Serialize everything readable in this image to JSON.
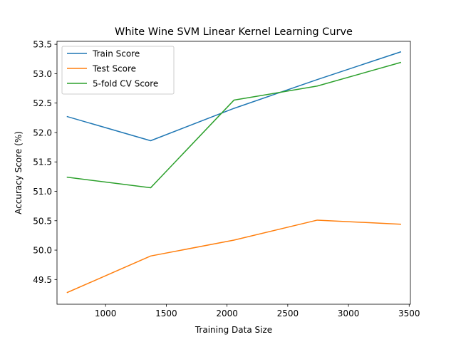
{
  "chart_data": {
    "type": "line",
    "title": "White Wine SVM Linear Kernel Learning Curve",
    "xlabel": "Training Data Size",
    "ylabel": "Accuracy Score (%)",
    "xlim": [
      600,
      3510
    ],
    "ylim": [
      49.08,
      53.55
    ],
    "x_ticks": [
      1000,
      1500,
      2000,
      2500,
      3000,
      3500
    ],
    "y_ticks": [
      49.5,
      50.0,
      50.5,
      51.0,
      51.5,
      52.0,
      52.5,
      53.0,
      53.5
    ],
    "x_tick_labels": [
      "1000",
      "1500",
      "2000",
      "2500",
      "3000",
      "3500"
    ],
    "y_tick_labels": [
      "49.5",
      "50.0",
      "50.5",
      "51.0",
      "51.5",
      "52.0",
      "52.5",
      "53.0",
      "53.5"
    ],
    "x": [
      685,
      1371,
      2057,
      2743,
      3429
    ],
    "grid": false,
    "legend_position": "top-left",
    "series": [
      {
        "name": "Train Score",
        "color": "#1f77b4",
        "values": [
          52.27,
          51.86,
          52.41,
          52.9,
          53.37
        ]
      },
      {
        "name": "Test Score",
        "color": "#ff7f0e",
        "values": [
          49.28,
          49.9,
          50.17,
          50.51,
          50.44
        ]
      },
      {
        "name": "5-fold CV Score",
        "color": "#2ca02c",
        "values": [
          51.24,
          51.06,
          52.55,
          52.79,
          53.19
        ]
      }
    ]
  }
}
